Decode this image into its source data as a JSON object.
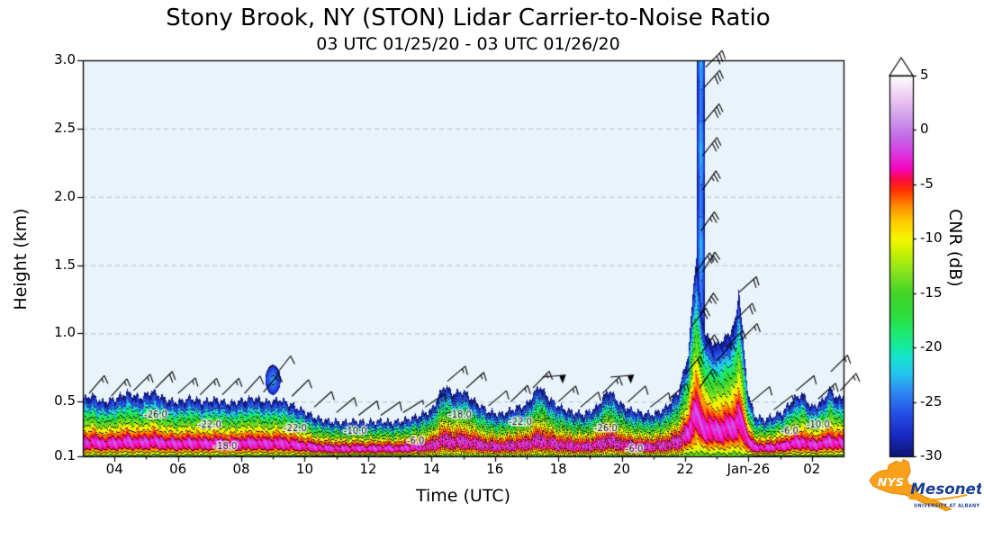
{
  "title": "Stony Brook, NY (STON) Lidar Carrier-to-Noise Ratio",
  "subtitle": "03 UTC 01/25/20 - 03 UTC 01/26/20",
  "axes": {
    "x_label": "Time (UTC)",
    "y_label": "Height (km)",
    "x_range_hours": [
      3,
      27
    ],
    "y_range_km": [
      0.1,
      3.0
    ],
    "x_ticks": [
      {
        "t": 4,
        "label": "04"
      },
      {
        "t": 6,
        "label": "06"
      },
      {
        "t": 8,
        "label": "08"
      },
      {
        "t": 10,
        "label": "10"
      },
      {
        "t": 12,
        "label": "12"
      },
      {
        "t": 14,
        "label": "14"
      },
      {
        "t": 16,
        "label": "16"
      },
      {
        "t": 18,
        "label": "18"
      },
      {
        "t": 20,
        "label": "20"
      },
      {
        "t": 22,
        "label": "22"
      },
      {
        "t": 24,
        "label": "Jan-26"
      },
      {
        "t": 26,
        "label": "02"
      }
    ],
    "y_ticks": [
      {
        "v": 0.1,
        "label": "0.1"
      },
      {
        "v": 0.5,
        "label": "0.5"
      },
      {
        "v": 1.0,
        "label": "1.0"
      },
      {
        "v": 1.5,
        "label": "1.5"
      },
      {
        "v": 2.0,
        "label": "2.0"
      },
      {
        "v": 2.5,
        "label": "2.5"
      },
      {
        "v": 3.0,
        "label": "3.0"
      }
    ],
    "grid": "horizontal-dashed"
  },
  "colorbar": {
    "label": "CNR (dB)",
    "min": -30,
    "max": 5,
    "extend_max": true,
    "ticks": [
      {
        "v": 5,
        "label": "5"
      },
      {
        "v": 0,
        "label": "0"
      },
      {
        "v": -5,
        "label": "-5"
      },
      {
        "v": -10,
        "label": "-10"
      },
      {
        "v": -15,
        "label": "-15"
      },
      {
        "v": -20,
        "label": "-20"
      },
      {
        "v": -25,
        "label": "-25"
      },
      {
        "v": -30,
        "label": "-30"
      }
    ],
    "stops": [
      [
        -30,
        "#0d1775"
      ],
      [
        -28,
        "#1b2bc8"
      ],
      [
        -26,
        "#2453e8"
      ],
      [
        -24,
        "#2e8df2"
      ],
      [
        -22.5,
        "#25c4ef"
      ],
      [
        -21,
        "#17e3d2"
      ],
      [
        -20,
        "#15eba4"
      ],
      [
        -18.5,
        "#1fe96a"
      ],
      [
        -17,
        "#2edd3e"
      ],
      [
        -15,
        "#44d428"
      ],
      [
        -13,
        "#8ae51e"
      ],
      [
        -11,
        "#d2f400"
      ],
      [
        -10,
        "#f8f400"
      ],
      [
        -8.5,
        "#ffcf00"
      ],
      [
        -7,
        "#ff8d00"
      ],
      [
        -5.5,
        "#ff3000"
      ],
      [
        -4.5,
        "#fb0b49"
      ],
      [
        -3.5,
        "#f705c3"
      ],
      [
        -2,
        "#d93ee3"
      ],
      [
        -0.5,
        "#c26ee8"
      ],
      [
        1,
        "#cf9bea"
      ],
      [
        2.5,
        "#e7bff0"
      ],
      [
        4,
        "#f7e2f7"
      ],
      [
        5,
        "#ffffff"
      ]
    ]
  },
  "plot": {
    "background": "#e9f3fa"
  },
  "chart_data": {
    "type": "heatmap",
    "title": "Stony Brook, NY (STON) Lidar Carrier-to-Noise Ratio",
    "value_name": "CNR",
    "value_unit": "dB",
    "value_range_db": [
      -30,
      5
    ],
    "x_hours_utc": [
      3,
      27
    ],
    "y_height_km": [
      0.1,
      3.0
    ],
    "contour_levels_db": [
      -26,
      -22,
      -18,
      -14,
      -10,
      -6,
      -2
    ],
    "echo_top_t_km": [
      [
        3.0,
        0.52
      ],
      [
        3.3,
        0.55
      ],
      [
        3.6,
        0.5
      ],
      [
        4.0,
        0.52
      ],
      [
        4.4,
        0.57
      ],
      [
        4.8,
        0.53
      ],
      [
        5.2,
        0.58
      ],
      [
        5.6,
        0.52
      ],
      [
        6.0,
        0.5
      ],
      [
        6.4,
        0.53
      ],
      [
        6.8,
        0.5
      ],
      [
        7.2,
        0.52
      ],
      [
        7.6,
        0.49
      ],
      [
        8.0,
        0.51
      ],
      [
        8.4,
        0.53
      ],
      [
        8.8,
        0.5
      ],
      [
        9.2,
        0.52
      ],
      [
        9.6,
        0.48
      ],
      [
        10.0,
        0.43
      ],
      [
        10.4,
        0.38
      ],
      [
        10.8,
        0.36
      ],
      [
        11.2,
        0.35
      ],
      [
        11.6,
        0.36
      ],
      [
        12.0,
        0.35
      ],
      [
        12.4,
        0.36
      ],
      [
        12.8,
        0.35
      ],
      [
        13.2,
        0.37
      ],
      [
        13.6,
        0.4
      ],
      [
        14.0,
        0.44
      ],
      [
        14.4,
        0.62
      ],
      [
        14.7,
        0.56
      ],
      [
        15.0,
        0.58
      ],
      [
        15.4,
        0.5
      ],
      [
        15.8,
        0.43
      ],
      [
        16.2,
        0.41
      ],
      [
        16.6,
        0.45
      ],
      [
        17.0,
        0.48
      ],
      [
        17.4,
        0.62
      ],
      [
        17.7,
        0.53
      ],
      [
        18.0,
        0.47
      ],
      [
        18.4,
        0.43
      ],
      [
        18.8,
        0.41
      ],
      [
        19.2,
        0.46
      ],
      [
        19.6,
        0.59
      ],
      [
        19.9,
        0.5
      ],
      [
        20.2,
        0.45
      ],
      [
        20.6,
        0.42
      ],
      [
        21.0,
        0.41
      ],
      [
        21.4,
        0.46
      ],
      [
        21.8,
        0.58
      ],
      [
        22.1,
        0.85
      ],
      [
        22.25,
        1.3
      ],
      [
        22.35,
        1.58
      ],
      [
        22.5,
        1.2
      ],
      [
        22.65,
        1.0
      ],
      [
        22.8,
        0.95
      ],
      [
        23.0,
        0.92
      ],
      [
        23.2,
        0.96
      ],
      [
        23.4,
        1.0
      ],
      [
        23.6,
        1.1
      ],
      [
        23.7,
        1.35
      ],
      [
        23.85,
        0.9
      ],
      [
        24.0,
        0.55
      ],
      [
        24.2,
        0.4
      ],
      [
        24.5,
        0.37
      ],
      [
        24.8,
        0.4
      ],
      [
        25.1,
        0.43
      ],
      [
        25.4,
        0.52
      ],
      [
        25.7,
        0.56
      ],
      [
        26.0,
        0.46
      ],
      [
        26.3,
        0.5
      ],
      [
        26.6,
        0.6
      ],
      [
        26.8,
        0.52
      ],
      [
        27.0,
        0.55
      ]
    ],
    "cnr_profile_frac_db": [
      [
        0,
        -15
      ],
      [
        0.05,
        -10
      ],
      [
        0.14,
        -4
      ],
      [
        0.24,
        -2
      ],
      [
        0.34,
        -5
      ],
      [
        0.44,
        -9
      ],
      [
        0.54,
        -13
      ],
      [
        0.65,
        -17
      ],
      [
        0.76,
        -21
      ],
      [
        0.87,
        -26
      ],
      [
        1,
        -30
      ]
    ],
    "features": [
      {
        "type": "column",
        "t_start": 22.38,
        "t_end": 22.62,
        "top_km": 3.0,
        "cnr_core_db": -23,
        "cnr_edge_db": -30
      },
      {
        "type": "blob",
        "t_center": 9.0,
        "h_center_km": 0.66,
        "t_radius": 0.24,
        "h_radius_km": 0.11,
        "cnr_core_db": -24,
        "cnr_edge_db": -29
      }
    ],
    "contour_labels": [
      {
        "text": "-26.0",
        "t": 5.3,
        "h": 0.4
      },
      {
        "text": "-22.0",
        "t": 7.0,
        "h": 0.33
      },
      {
        "text": "-18.0",
        "t": 7.5,
        "h": 0.17
      },
      {
        "text": "-22.0",
        "t": 9.7,
        "h": 0.3
      },
      {
        "text": "-10.0",
        "t": 11.6,
        "h": 0.28
      },
      {
        "text": "-6.0",
        "t": 13.5,
        "h": 0.21
      },
      {
        "text": "-18.0",
        "t": 14.9,
        "h": 0.4
      },
      {
        "text": "-22.0",
        "t": 16.8,
        "h": 0.35
      },
      {
        "text": "-26.0",
        "t": 19.5,
        "h": 0.3
      },
      {
        "text": "-6.0",
        "t": 20.4,
        "h": 0.15
      },
      {
        "text": "-6.0",
        "t": 25.3,
        "h": 0.28
      },
      {
        "text": "-10.0",
        "t": 26.2,
        "h": 0.33
      }
    ],
    "wind_barbs_t_h_kt_dir": [
      [
        3.2,
        0.56,
        15,
        40
      ],
      [
        3.9,
        0.54,
        15,
        42
      ],
      [
        4.6,
        0.58,
        15,
        45
      ],
      [
        5.3,
        0.6,
        20,
        45
      ],
      [
        6.0,
        0.56,
        15,
        48
      ],
      [
        6.7,
        0.55,
        15,
        45
      ],
      [
        7.4,
        0.55,
        15,
        45
      ],
      [
        8.1,
        0.56,
        10,
        42
      ],
      [
        8.7,
        0.57,
        15,
        40
      ],
      [
        9.1,
        0.7,
        10,
        38
      ],
      [
        9.6,
        0.54,
        10,
        45
      ],
      [
        10.3,
        0.46,
        10,
        48
      ],
      [
        11.0,
        0.42,
        10,
        50
      ],
      [
        11.7,
        0.4,
        10,
        52
      ],
      [
        12.4,
        0.4,
        10,
        55
      ],
      [
        13.1,
        0.42,
        5,
        58
      ],
      [
        13.8,
        0.46,
        10,
        55
      ],
      [
        14.5,
        0.65,
        15,
        50
      ],
      [
        15.1,
        0.6,
        15,
        48
      ],
      [
        15.8,
        0.47,
        10,
        50
      ],
      [
        16.5,
        0.5,
        15,
        46
      ],
      [
        17.2,
        0.6,
        15,
        44
      ],
      [
        17.5,
        0.68,
        50,
        85
      ],
      [
        18.0,
        0.5,
        15,
        48
      ],
      [
        18.7,
        0.46,
        10,
        50
      ],
      [
        19.4,
        0.56,
        15,
        45
      ],
      [
        19.65,
        0.68,
        50,
        85
      ],
      [
        20.2,
        0.5,
        10,
        48
      ],
      [
        20.9,
        0.46,
        10,
        52
      ],
      [
        21.5,
        0.52,
        15,
        48
      ],
      [
        22.0,
        0.7,
        20,
        40
      ],
      [
        22.2,
        1.05,
        20,
        38
      ],
      [
        22.35,
        1.45,
        20,
        35
      ],
      [
        22.45,
        0.6,
        20,
        35
      ],
      [
        22.5,
        0.85,
        20,
        35
      ],
      [
        22.5,
        1.15,
        25,
        32
      ],
      [
        22.55,
        1.45,
        25,
        32
      ],
      [
        22.5,
        1.75,
        25,
        35
      ],
      [
        22.55,
        2.05,
        25,
        35
      ],
      [
        22.55,
        2.3,
        30,
        38
      ],
      [
        22.6,
        2.55,
        30,
        40
      ],
      [
        22.6,
        2.8,
        30,
        42
      ],
      [
        22.65,
        2.95,
        30,
        45
      ],
      [
        23.0,
        0.8,
        15,
        42
      ],
      [
        23.3,
        0.9,
        15,
        45
      ],
      [
        23.6,
        1.1,
        20,
        45
      ],
      [
        23.7,
        1.3,
        20,
        48
      ],
      [
        23.75,
        0.95,
        15,
        45
      ],
      [
        24.1,
        0.5,
        10,
        50
      ],
      [
        24.8,
        0.44,
        10,
        52
      ],
      [
        25.5,
        0.58,
        10,
        50
      ],
      [
        26.2,
        0.52,
        15,
        48
      ],
      [
        26.6,
        0.72,
        15,
        45
      ],
      [
        26.9,
        0.58,
        15,
        42
      ]
    ]
  },
  "logo": {
    "org": "NYS",
    "name": "Mesonet",
    "tagline": "UNIVERSITY AT ALBANY",
    "shape_color": "#F9A01B",
    "text_color": "#1B3F8F"
  }
}
